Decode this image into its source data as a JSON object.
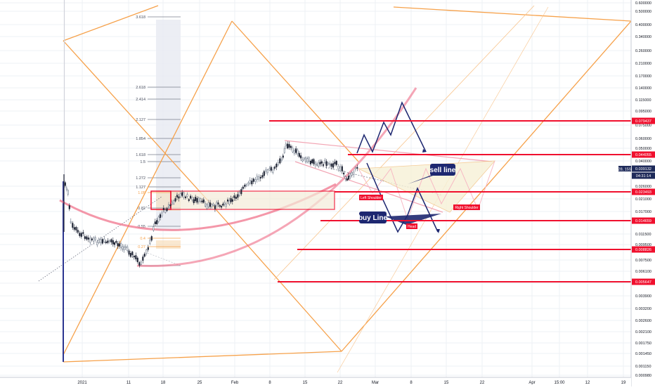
{
  "chart_data": {
    "type": "candlestick",
    "scale": "log",
    "grid": true,
    "colors": {
      "up": "#5f6b7d",
      "down": "#1f2435",
      "fib": "#f6a14a",
      "fib_box": "#e9ebf2",
      "arc": "#ef6b85",
      "level": "#f0102e",
      "channel": "#f6a14a",
      "path": "#1d2770",
      "pattern_fill": "#f7f1d7",
      "axis_text": "#131722"
    },
    "y_ticks": [
      "0.600000",
      "0.500000",
      "0.400000",
      "0.340000",
      "0.260000",
      "0.210000",
      "0.170000",
      "0.140000",
      "0.115000",
      "0.095000",
      "0.075000",
      "0.060000",
      "0.050000",
      "0.040000",
      "0.026000",
      "0.021000",
      "0.017000",
      "0.011500",
      "0.009500",
      "0.007500",
      "0.006100",
      "0.005000",
      "0.003900",
      "0.003200",
      "0.002600",
      "0.002100",
      "0.001750",
      "0.001450",
      "0.001150",
      "0.000980"
    ],
    "x_ticks": [
      "2021",
      "11",
      "18",
      "25",
      "Feb",
      "8",
      "15",
      "22",
      "Mar",
      "8",
      "15",
      "22",
      "Apr",
      "15:00",
      "12",
      "19"
    ],
    "price_labels": [
      {
        "text": "0.079437",
        "color": "#f0102e"
      },
      {
        "text": "0.044055",
        "color": "#f0102e"
      },
      {
        "text": "0.039132",
        "color": "#1e2a5a"
      },
      {
        "text": "04:31:14",
        "color": "#1e2a5a"
      },
      {
        "text": "0.023493",
        "color": "#f0102e"
      },
      {
        "text": "0.014659",
        "color": "#f0102e"
      },
      {
        "text": "0.008826",
        "color": "#f0102e"
      },
      {
        "text": "0.005647",
        "color": "#f0102e"
      }
    ],
    "symbol_tag": "28, 15S",
    "fib_levels": [
      {
        "label": "3.618"
      },
      {
        "label": "2.618"
      },
      {
        "label": "2.414"
      },
      {
        "label": "2.127"
      },
      {
        "label": "1.854"
      },
      {
        "label": "1.618"
      },
      {
        "label": "1.5"
      },
      {
        "label": "1.272"
      },
      {
        "label": "1.127"
      },
      {
        "label": "1.05"
      },
      {
        "label": "0.82"
      },
      {
        "label": "0.55"
      },
      {
        "label": "0.4"
      },
      {
        "label": "0.27"
      }
    ],
    "annotations": {
      "sell": "sell line",
      "buy": "buy Line",
      "left_shoulder": "Left Shoulder",
      "head": "Head",
      "right_shoulder": "Right Shoulder"
    }
  }
}
